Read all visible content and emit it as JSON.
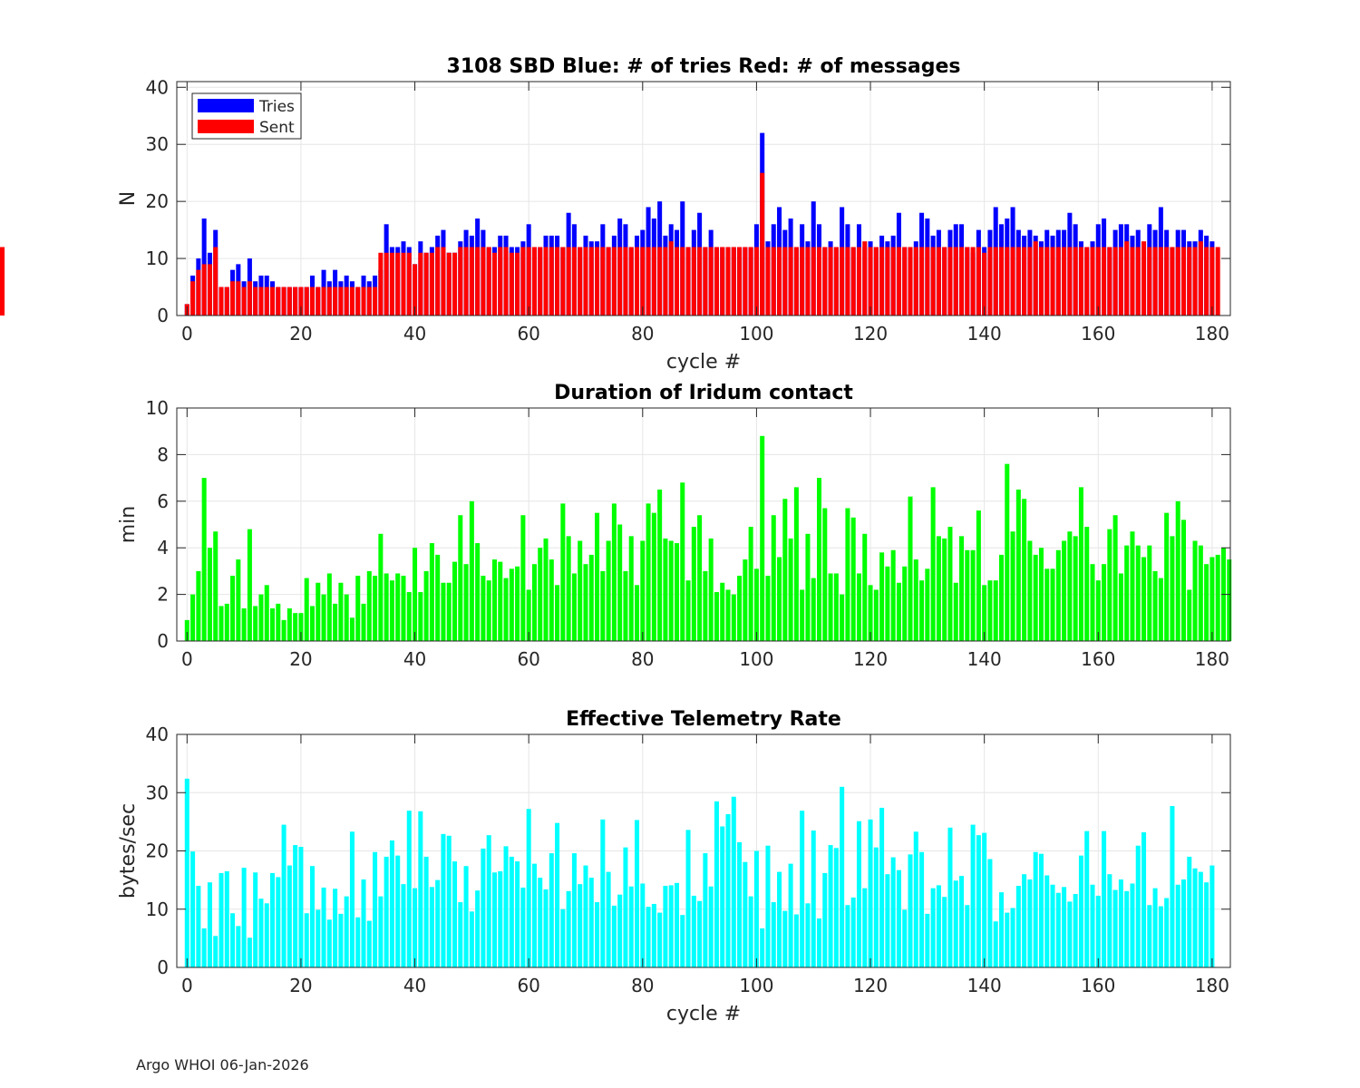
{
  "footer": "Argo WHOI 06-Jan-2026",
  "colors": {
    "tries": "#0000ff",
    "sent": "#ff0000",
    "duration": "#00ff00",
    "rate": "#00ffff",
    "grid": "#e6e6e6",
    "axis": "#262626"
  },
  "chart_data": [
    {
      "type": "bar",
      "title": "3108 SBD  Blue: # of tries   Red: # of messages",
      "xlabel": "cycle #",
      "ylabel": "N",
      "xlim": [
        -1.8,
        183.2
      ],
      "ylim": [
        0,
        41
      ],
      "xticks": [
        0,
        20,
        40,
        60,
        80,
        100,
        120,
        140,
        160,
        180
      ],
      "yticks": [
        0,
        10,
        20,
        30,
        40
      ],
      "grid": true,
      "legend": {
        "placement": "top-left",
        "entries": [
          {
            "label": "Tries",
            "series": "tries"
          },
          {
            "label": "Sent",
            "series": "sent"
          }
        ]
      },
      "x_start": 0,
      "series": [
        {
          "name": "Tries",
          "key": "tries",
          "values": [
            2,
            7,
            10,
            17,
            11,
            15,
            5,
            5,
            8,
            9,
            6,
            10,
            6,
            7,
            7,
            6,
            5,
            5,
            5,
            5,
            5,
            5,
            7,
            5,
            8,
            6,
            8,
            6,
            7,
            6,
            5,
            7,
            6,
            7,
            8,
            16,
            12,
            12,
            13,
            12,
            9,
            13,
            11,
            12,
            14,
            15,
            11,
            11,
            13,
            15,
            14,
            17,
            15,
            12,
            12,
            14,
            14,
            12,
            12,
            13,
            16,
            12,
            12,
            14,
            14,
            14,
            12,
            18,
            16,
            12,
            14,
            13,
            13,
            16,
            12,
            14,
            17,
            16,
            12,
            14,
            15,
            19,
            17,
            20,
            14,
            16,
            15,
            20,
            12,
            15,
            18,
            12,
            15,
            12,
            12,
            12,
            12,
            12,
            12,
            12,
            16,
            12,
            32,
            13,
            16,
            19,
            15,
            17,
            12,
            16,
            13,
            20,
            16,
            12,
            13,
            12,
            19,
            16,
            12,
            16,
            12,
            13,
            12,
            14,
            13,
            14,
            18,
            12,
            12,
            13,
            18,
            17,
            14,
            15,
            12,
            15,
            16,
            16,
            12,
            11,
            15,
            12,
            15,
            19,
            16,
            17,
            19,
            15,
            14,
            15,
            14,
            13,
            15,
            14,
            15,
            15,
            18,
            16,
            13,
            12,
            13,
            16,
            17,
            12,
            15,
            16,
            16,
            14,
            15,
            12,
            16,
            15,
            19,
            15,
            12,
            15,
            15,
            13,
            13,
            15,
            14,
            13
          ],
          "cycles": [
            0,
            1,
            2,
            3,
            4,
            5,
            6,
            7,
            8,
            9,
            10,
            11,
            12,
            13,
            14,
            15,
            16,
            17,
            18,
            19,
            20,
            21,
            22,
            23,
            24,
            25,
            26,
            27,
            28,
            29,
            30,
            31,
            32,
            33,
            34,
            35,
            36,
            37,
            38,
            39,
            40,
            41,
            42,
            43,
            44,
            45,
            46,
            47,
            48,
            49,
            50,
            51,
            52,
            53,
            54,
            55,
            56,
            57,
            58,
            59,
            60,
            61,
            62,
            63,
            64,
            65,
            66,
            67,
            68,
            69,
            70,
            71,
            72,
            73,
            74,
            75,
            76,
            77,
            78,
            79,
            80,
            81,
            82,
            83,
            84,
            85,
            86,
            87,
            88,
            89,
            90,
            91,
            92,
            93,
            94,
            95,
            96,
            97,
            98,
            99,
            100,
            101,
            101,
            102,
            103,
            104,
            105,
            106,
            107,
            108,
            109,
            110,
            111,
            112,
            113,
            114,
            115,
            116,
            117,
            118,
            119,
            120,
            121,
            122,
            123,
            124,
            125,
            126,
            127,
            128,
            129,
            130,
            131,
            132,
            133,
            134,
            135,
            136,
            137,
            138,
            139,
            140,
            141,
            142,
            143,
            144,
            145,
            146,
            147,
            148,
            149,
            150,
            151,
            152,
            153,
            154,
            155,
            156,
            157,
            158,
            159,
            160,
            161,
            162,
            163,
            164,
            165,
            166,
            167,
            168,
            169,
            170,
            171,
            172,
            173,
            174,
            175,
            176,
            177,
            178,
            179,
            180,
            181
          ]
        },
        {
          "name": "Sent",
          "key": "sent",
          "values": [
            2,
            6,
            8,
            9,
            9,
            12,
            5,
            5,
            6,
            6,
            5,
            6,
            5,
            5,
            5,
            5,
            5,
            5,
            5,
            5,
            5,
            5,
            5,
            5,
            5,
            5,
            5,
            5,
            5,
            5,
            5,
            5,
            5,
            5,
            11,
            11,
            11,
            11,
            11,
            11,
            9,
            11,
            11,
            11,
            12,
            12,
            11,
            11,
            12,
            12,
            12,
            12,
            12,
            12,
            11,
            12,
            12,
            11,
            11,
            12,
            12,
            12,
            12,
            12,
            12,
            12,
            12,
            12,
            12,
            12,
            12,
            12,
            12,
            12,
            12,
            12,
            12,
            12,
            12,
            12,
            12,
            12,
            12,
            12,
            12,
            13,
            12,
            12,
            12,
            12,
            12,
            12,
            12,
            12,
            12,
            12,
            12,
            12,
            12,
            12,
            12,
            12,
            25,
            12,
            12,
            12,
            12,
            12,
            12,
            12,
            12,
            12,
            12,
            12,
            12,
            12,
            12,
            12,
            12,
            12,
            13,
            12,
            12,
            12,
            12,
            12,
            12,
            12,
            12,
            12,
            12,
            12,
            12,
            12,
            12,
            12,
            12,
            12,
            12,
            12,
            12,
            11,
            12,
            12,
            12,
            12,
            12,
            12,
            12,
            12,
            13,
            12,
            12,
            12,
            12,
            12,
            12,
            12,
            12,
            12,
            12,
            12,
            12,
            12,
            12,
            12,
            13,
            12,
            12,
            13,
            12,
            12,
            12,
            12,
            12,
            12,
            12,
            12,
            12,
            13,
            12,
            12,
            12,
            12
          ],
          "cycles": "same as Tries"
        }
      ]
    },
    {
      "type": "bar",
      "title": "Duration of Iridum contact",
      "xlabel": "",
      "ylabel": "min",
      "xlim": [
        -1.8,
        183.2
      ],
      "ylim": [
        0,
        10
      ],
      "xticks": [
        0,
        20,
        40,
        60,
        80,
        100,
        120,
        140,
        160,
        180
      ],
      "yticks": [
        0,
        2,
        4,
        6,
        8,
        10
      ],
      "grid": true,
      "x_start": 0,
      "series": [
        {
          "name": "Duration",
          "key": "duration",
          "values": [
            0.9,
            2.0,
            3.0,
            7.0,
            4.0,
            4.7,
            1.5,
            1.6,
            2.8,
            3.5,
            1.4,
            4.8,
            1.5,
            2.0,
            2.4,
            1.4,
            1.6,
            0.9,
            1.4,
            1.2,
            1.2,
            2.7,
            1.5,
            2.5,
            2.0,
            2.9,
            1.6,
            2.5,
            2.0,
            1.0,
            2.8,
            1.6,
            3.0,
            2.8,
            4.6,
            2.9,
            2.6,
            2.9,
            2.8,
            2.1,
            4.0,
            2.1,
            3.0,
            4.2,
            3.7,
            2.5,
            2.5,
            3.4,
            5.4,
            3.3,
            6.0,
            4.2,
            2.8,
            2.6,
            3.5,
            3.4,
            2.7,
            3.1,
            3.2,
            5.4,
            2.2,
            3.3,
            4.0,
            4.4,
            3.5,
            2.4,
            5.9,
            4.5,
            2.9,
            4.3,
            3.3,
            3.7,
            5.5,
            3.0,
            4.3,
            5.9,
            5.0,
            3.0,
            4.5,
            2.4,
            4.3,
            5.9,
            5.5,
            6.5,
            4.4,
            4.3,
            4.2,
            6.8,
            2.6,
            4.9,
            5.4,
            3.0,
            4.4,
            2.1,
            2.5,
            2.2,
            2.0,
            2.8,
            3.5,
            4.9,
            3.1,
            8.8,
            2.8,
            5.4,
            3.6,
            6.1,
            4.4,
            6.6,
            2.2,
            4.6,
            2.7,
            7.0,
            5.7,
            2.9,
            2.9,
            2.0,
            5.7,
            5.3,
            2.9,
            4.6,
            2.4,
            2.2,
            3.8,
            3.2,
            3.9,
            2.5,
            3.2,
            6.2,
            3.5,
            2.6,
            3.1,
            6.6,
            4.5,
            4.4,
            4.9,
            2.5,
            4.5,
            3.9,
            3.9,
            5.6,
            2.4,
            2.6,
            2.6,
            3.7,
            7.6,
            4.7,
            6.5,
            6.1,
            4.3,
            3.7,
            4.0,
            3.1,
            3.1,
            3.9,
            4.3,
            4.7,
            4.5,
            6.6,
            4.9,
            3.3,
            2.6,
            3.3,
            4.8,
            5.4,
            2.9,
            4.1,
            4.7,
            4.1,
            3.6,
            4.1,
            3.0,
            2.7,
            5.5,
            4.5,
            6.0,
            5.2,
            2.2,
            4.3,
            4.1,
            3.3,
            3.6,
            3.7,
            4.0,
            3.5
          ]
        }
      ]
    },
    {
      "type": "bar",
      "title": "Effective Telemetry Rate",
      "xlabel": "cycle #",
      "ylabel": "bytes/sec",
      "xlim": [
        -1.8,
        183.2
      ],
      "ylim": [
        0,
        40
      ],
      "xticks": [
        0,
        20,
        40,
        60,
        80,
        100,
        120,
        140,
        160,
        180
      ],
      "yticks": [
        0,
        10,
        20,
        30,
        40
      ],
      "grid": true,
      "x_start": 0,
      "series": [
        {
          "name": "Rate",
          "key": "rate",
          "values": [
            32.4,
            19.9,
            14.0,
            6.7,
            14.6,
            5.4,
            16.2,
            16.5,
            9.3,
            7.1,
            17.1,
            5.1,
            16.3,
            11.8,
            11.0,
            16.2,
            15.5,
            24.5,
            17.5,
            21.0,
            20.7,
            9.3,
            17.4,
            9.9,
            13.7,
            8.2,
            13.5,
            9.2,
            12.2,
            23.3,
            8.6,
            15.1,
            8.0,
            19.8,
            12.2,
            19.0,
            21.8,
            19.2,
            14.3,
            26.9,
            13.6,
            26.8,
            19.0,
            13.8,
            15.0,
            22.9,
            22.6,
            18.2,
            11.2,
            17.4,
            9.6,
            13.2,
            20.4,
            22.7,
            16.3,
            16.5,
            20.8,
            19.0,
            18.2,
            13.7,
            27.2,
            17.8,
            15.4,
            13.4,
            19.6,
            24.8,
            10.0,
            13.1,
            19.6,
            14.3,
            17.5,
            15.4,
            11.2,
            25.4,
            16.4,
            10.6,
            12.5,
            20.6,
            13.9,
            25.3,
            14.4,
            10.4,
            10.9,
            9.4,
            14.0,
            14.1,
            14.5,
            9.0,
            23.6,
            12.3,
            11.4,
            19.6,
            13.9,
            28.5,
            24.2,
            26.3,
            29.3,
            21.5,
            18.1,
            12.2,
            20.0,
            6.7,
            20.9,
            11.2,
            16.4,
            9.7,
            17.8,
            9.1,
            26.9,
            11.0,
            23.5,
            8.4,
            16.2,
            21.0,
            20.5,
            31.0,
            10.7,
            12.0,
            25.1,
            13.6,
            25.4,
            20.6,
            27.4,
            16.0,
            18.9,
            16.7,
            9.9,
            19.4,
            23.3,
            19.8,
            9.2,
            13.6,
            14.1,
            12.1,
            24.0,
            14.9,
            15.7,
            10.7,
            24.5,
            22.7,
            23.1,
            18.6,
            7.9,
            12.9,
            9.4,
            10.2,
            14.0,
            16.0,
            15.1,
            19.8,
            19.5,
            15.8,
            14.2,
            12.8,
            13.8,
            11.3,
            12.6,
            19.2,
            23.4,
            14.2,
            12.3,
            23.4,
            16.0,
            13.3,
            15.1,
            13.1,
            14.4,
            20.9,
            23.2,
            10.7,
            13.6,
            10.5,
            11.9,
            27.7,
            14.2,
            15.1,
            19.0,
            17.0,
            16.4,
            14.6,
            17.5
          ]
        }
      ]
    }
  ]
}
